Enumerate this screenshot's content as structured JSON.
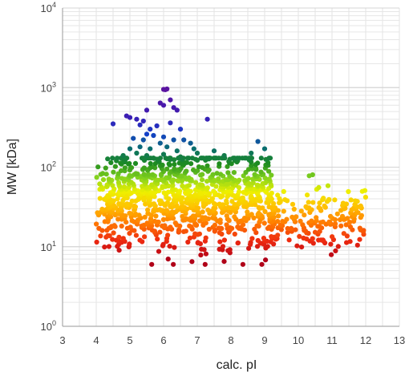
{
  "chart_data": {
    "type": "scatter",
    "title": "",
    "xlabel": "calc. pI",
    "ylabel": "MW [kDa]",
    "xlim": [
      3,
      13
    ],
    "ylim": [
      1,
      10000
    ],
    "y_scale": "log",
    "x_ticks": [
      "3",
      "4",
      "5",
      "6",
      "7",
      "8",
      "9",
      "10",
      "11",
      "12",
      "13"
    ],
    "y_ticks": [
      {
        "base": "10",
        "exp": "0"
      },
      {
        "base": "10",
        "exp": "1"
      },
      {
        "base": "10",
        "exp": "2"
      },
      {
        "base": "10",
        "exp": "3"
      },
      {
        "base": "10",
        "exp": "4"
      }
    ],
    "grid": true,
    "legend": "none",
    "color_scale": {
      "encodes": "MW",
      "stops": [
        {
          "mw": 7,
          "color": "#b00018"
        },
        {
          "mw": 12,
          "color": "#ee2a10"
        },
        {
          "mw": 20,
          "color": "#ff7a00"
        },
        {
          "mw": 32,
          "color": "#ffc000"
        },
        {
          "mw": 50,
          "color": "#eef000"
        },
        {
          "mw": 75,
          "color": "#82d21e"
        },
        {
          "mw": 110,
          "color": "#1e8c1e"
        },
        {
          "mw": 170,
          "color": "#0a6e6e"
        },
        {
          "mw": 260,
          "color": "#1440c8"
        },
        {
          "mw": 420,
          "color": "#3a1eb4"
        },
        {
          "mw": 900,
          "color": "#5a14a0"
        }
      ]
    },
    "points": [
      [
        6.0,
        950
      ],
      [
        6.1,
        960
      ],
      [
        6.05,
        940
      ],
      [
        6.2,
        700
      ],
      [
        6.3,
        560
      ],
      [
        6.0,
        600
      ],
      [
        5.9,
        640
      ],
      [
        6.4,
        520
      ],
      [
        5.5,
        520
      ],
      [
        7.3,
        400
      ],
      [
        5.0,
        420
      ],
      [
        4.9,
        440
      ],
      [
        5.2,
        400
      ],
      [
        5.4,
        380
      ],
      [
        4.5,
        350
      ],
      [
        5.3,
        340
      ],
      [
        5.6,
        300
      ],
      [
        5.8,
        330
      ],
      [
        6.2,
        360
      ],
      [
        6.5,
        300
      ],
      [
        5.5,
        260
      ],
      [
        5.7,
        250
      ],
      [
        6.0,
        240
      ],
      [
        6.3,
        220
      ],
      [
        5.4,
        220
      ],
      [
        5.1,
        230
      ],
      [
        6.6,
        220
      ],
      [
        6.8,
        200
      ],
      [
        8.8,
        210
      ],
      [
        5.9,
        200
      ],
      [
        5.3,
        180
      ],
      [
        5.6,
        170
      ],
      [
        6.1,
        180
      ],
      [
        6.4,
        160
      ],
      [
        6.9,
        170
      ],
      [
        5.0,
        170
      ],
      [
        7.5,
        160
      ],
      [
        9.0,
        170
      ],
      [
        5.2,
        150
      ],
      [
        4.8,
        140
      ],
      [
        5.5,
        140
      ],
      [
        6.0,
        145
      ],
      [
        6.5,
        135
      ],
      [
        7.0,
        150
      ],
      [
        7.8,
        140
      ],
      [
        8.6,
        150
      ],
      [
        5.7,
        130
      ],
      [
        6.2,
        125
      ],
      [
        8.2,
        120
      ],
      [
        4.6,
        120
      ]
    ],
    "generated_cloud": {
      "count": 1250,
      "x_range": [
        4.0,
        12.0
      ],
      "mw_median": 40,
      "mw_range": [
        6,
        130
      ]
    }
  }
}
